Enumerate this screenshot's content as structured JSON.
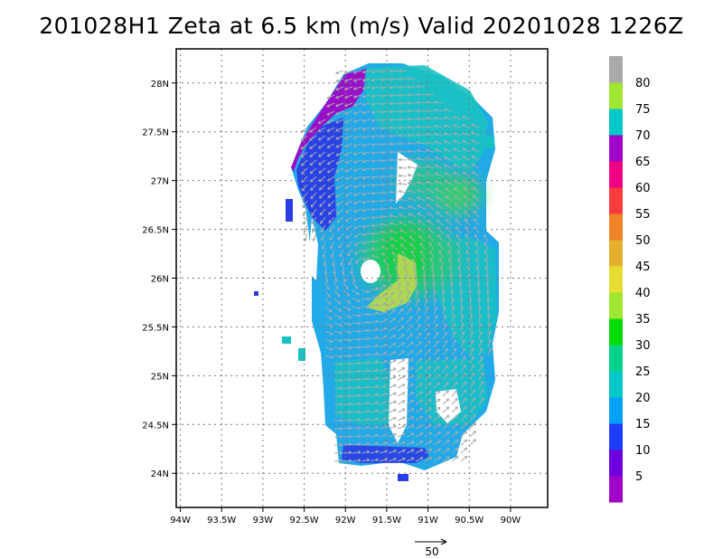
{
  "title": "201028H1  Zeta at 6.5 km (m/s) Valid 20201028  1226Z",
  "map": {
    "lat_ticks": [
      "28N",
      "27.5N",
      "27N",
      "26.5N",
      "26N",
      "25.5N",
      "25N",
      "24.5N",
      "24N"
    ],
    "lon_ticks": [
      "94W",
      "93.5W",
      "93W",
      "92.5W",
      "92W",
      "91.5W",
      "91W",
      "90.5W",
      "90W"
    ],
    "lat_values": [
      28,
      27.5,
      27,
      26.5,
      26,
      25.5,
      25,
      24.5,
      24
    ],
    "lon_values": [
      -94,
      -93.5,
      -93,
      -92.5,
      -92,
      -91.5,
      -91,
      -90.5,
      -90
    ],
    "extent": {
      "lon_min": -94.05,
      "lon_max": -89.55,
      "lat_min": 23.65,
      "lat_max": 28.35
    },
    "vortex_center": {
      "lon": -91.7,
      "lat": 26.05
    },
    "grid": true
  },
  "colorbar": {
    "labels": [
      "5",
      "10",
      "15",
      "20",
      "25",
      "30",
      "35",
      "40",
      "45",
      "50",
      "55",
      "60",
      "65",
      "70",
      "75",
      "80"
    ],
    "colors": [
      "#a000c8",
      "#6e00dc",
      "#1e3cff",
      "#00a0ff",
      "#00c8c8",
      "#00d28c",
      "#00dc00",
      "#a0e632",
      "#e6dc32",
      "#e6af2d",
      "#f08228",
      "#fa3c3c",
      "#f00082",
      "#a000c8",
      "#00c8c8",
      "#a0e632",
      "#aaaaaa"
    ]
  },
  "reference_vector": {
    "label": "50"
  }
}
